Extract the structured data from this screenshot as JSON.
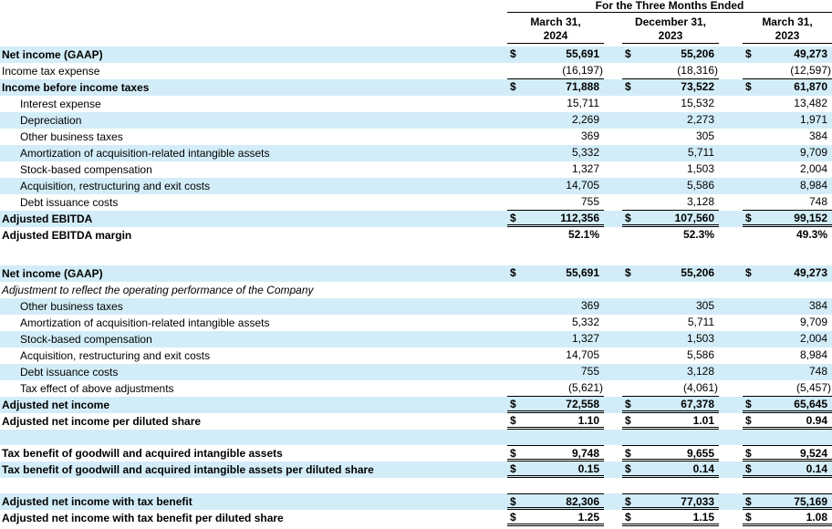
{
  "colors": {
    "row_shade": "#d3edf8",
    "rule": "#000000",
    "text": "#000000"
  },
  "table": {
    "header": {
      "period_title": "For the Three Months Ended",
      "columns": [
        {
          "month": "March 31,",
          "year": "2024"
        },
        {
          "month": "December 31,",
          "year": "2023"
        },
        {
          "month": "March 31,",
          "year": "2023"
        }
      ]
    },
    "rows": [
      {
        "label": "Net income (GAAP)",
        "values": [
          "55,691",
          "55,206",
          "49,273"
        ],
        "dollar": true,
        "bold": true,
        "shaded": true
      },
      {
        "label": "Income tax expense",
        "values": [
          "(16,197)",
          "(18,316)",
          "(12,597)"
        ],
        "border": "single"
      },
      {
        "label": "Income before income taxes",
        "values": [
          "71,888",
          "73,522",
          "61,870"
        ],
        "dollar": true,
        "bold": true,
        "shaded": true
      },
      {
        "label": "Interest expense",
        "values": [
          "15,711",
          "15,532",
          "13,482"
        ],
        "indent": true
      },
      {
        "label": "Depreciation",
        "values": [
          "2,269",
          "2,273",
          "1,971"
        ],
        "indent": true,
        "shaded": true
      },
      {
        "label": "Other business taxes",
        "values": [
          "369",
          "305",
          "384"
        ],
        "indent": true
      },
      {
        "label": "Amortization of acquisition-related intangible assets",
        "values": [
          "5,332",
          "5,711",
          "9,709"
        ],
        "indent": true,
        "shaded": true
      },
      {
        "label": "Stock-based compensation",
        "values": [
          "1,327",
          "1,503",
          "2,004"
        ],
        "indent": true
      },
      {
        "label": "Acquisition, restructuring and exit costs",
        "values": [
          "14,705",
          "5,586",
          "8,984"
        ],
        "indent": true,
        "shaded": true
      },
      {
        "label": "Debt issuance costs",
        "values": [
          "755",
          "3,128",
          "748"
        ],
        "indent": true,
        "border": "single"
      },
      {
        "label": "Adjusted EBITDA",
        "values": [
          "112,356",
          "107,560",
          "99,152"
        ],
        "dollar": true,
        "bold": true,
        "shaded": true,
        "border": "double"
      },
      {
        "label": "Adjusted EBITDA margin",
        "values": [
          "52.1%",
          "52.3%",
          "49.3%"
        ],
        "bold": true
      },
      {
        "spacer": "lg"
      },
      {
        "label": "Net income (GAAP)",
        "values": [
          "55,691",
          "55,206",
          "49,273"
        ],
        "dollar": true,
        "bold": true,
        "shaded": true
      },
      {
        "label": "Adjustment to reflect the operating performance of the Company",
        "italic": true
      },
      {
        "label": "Other business taxes",
        "values": [
          "369",
          "305",
          "384"
        ],
        "indent": true,
        "shaded": true
      },
      {
        "label": "Amortization of acquisition-related intangible assets",
        "values": [
          "5,332",
          "5,711",
          "9,709"
        ],
        "indent": true
      },
      {
        "label": "Stock-based compensation",
        "values": [
          "1,327",
          "1,503",
          "2,004"
        ],
        "indent": true,
        "shaded": true
      },
      {
        "label": "Acquisition, restructuring and exit costs",
        "values": [
          "14,705",
          "5,586",
          "8,984"
        ],
        "indent": true
      },
      {
        "label": "Debt issuance costs",
        "values": [
          "755",
          "3,128",
          "748"
        ],
        "indent": true,
        "shaded": true
      },
      {
        "label": "Tax effect of above adjustments",
        "values": [
          "(5,621)",
          "(4,061)",
          "(5,457)"
        ],
        "indent": true,
        "border": "single"
      },
      {
        "label": "Adjusted net income",
        "values": [
          "72,558",
          "67,378",
          "65,645"
        ],
        "dollar": true,
        "bold": true,
        "shaded": true,
        "border": "double"
      },
      {
        "label": "Adjusted net income per diluted share",
        "values": [
          "1.10",
          "1.01",
          "0.94"
        ],
        "dollar": true,
        "bold": true,
        "border": "double"
      },
      {
        "spacer": "md",
        "shaded": true
      },
      {
        "label": "Tax benefit of goodwill and acquired intangible assets",
        "values": [
          "9,748",
          "9,655",
          "9,524"
        ],
        "dollar": true,
        "bold": true,
        "border": "double",
        "border_top": "single"
      },
      {
        "label": "Tax benefit of goodwill and acquired intangible assets per diluted share",
        "values": [
          "0.15",
          "0.14",
          "0.14"
        ],
        "dollar": true,
        "bold": true,
        "shaded": true,
        "border": "double"
      },
      {
        "spacer": "md"
      },
      {
        "label": "Adjusted net income with tax benefit",
        "values": [
          "82,306",
          "77,033",
          "75,169"
        ],
        "dollar": true,
        "bold": true,
        "shaded": true,
        "border": "double",
        "border_top": "single"
      },
      {
        "label": "Adjusted net income with tax benefit per diluted share",
        "values": [
          "1.25",
          "1.15",
          "1.08"
        ],
        "dollar": true,
        "bold": true,
        "border": "double"
      }
    ]
  }
}
